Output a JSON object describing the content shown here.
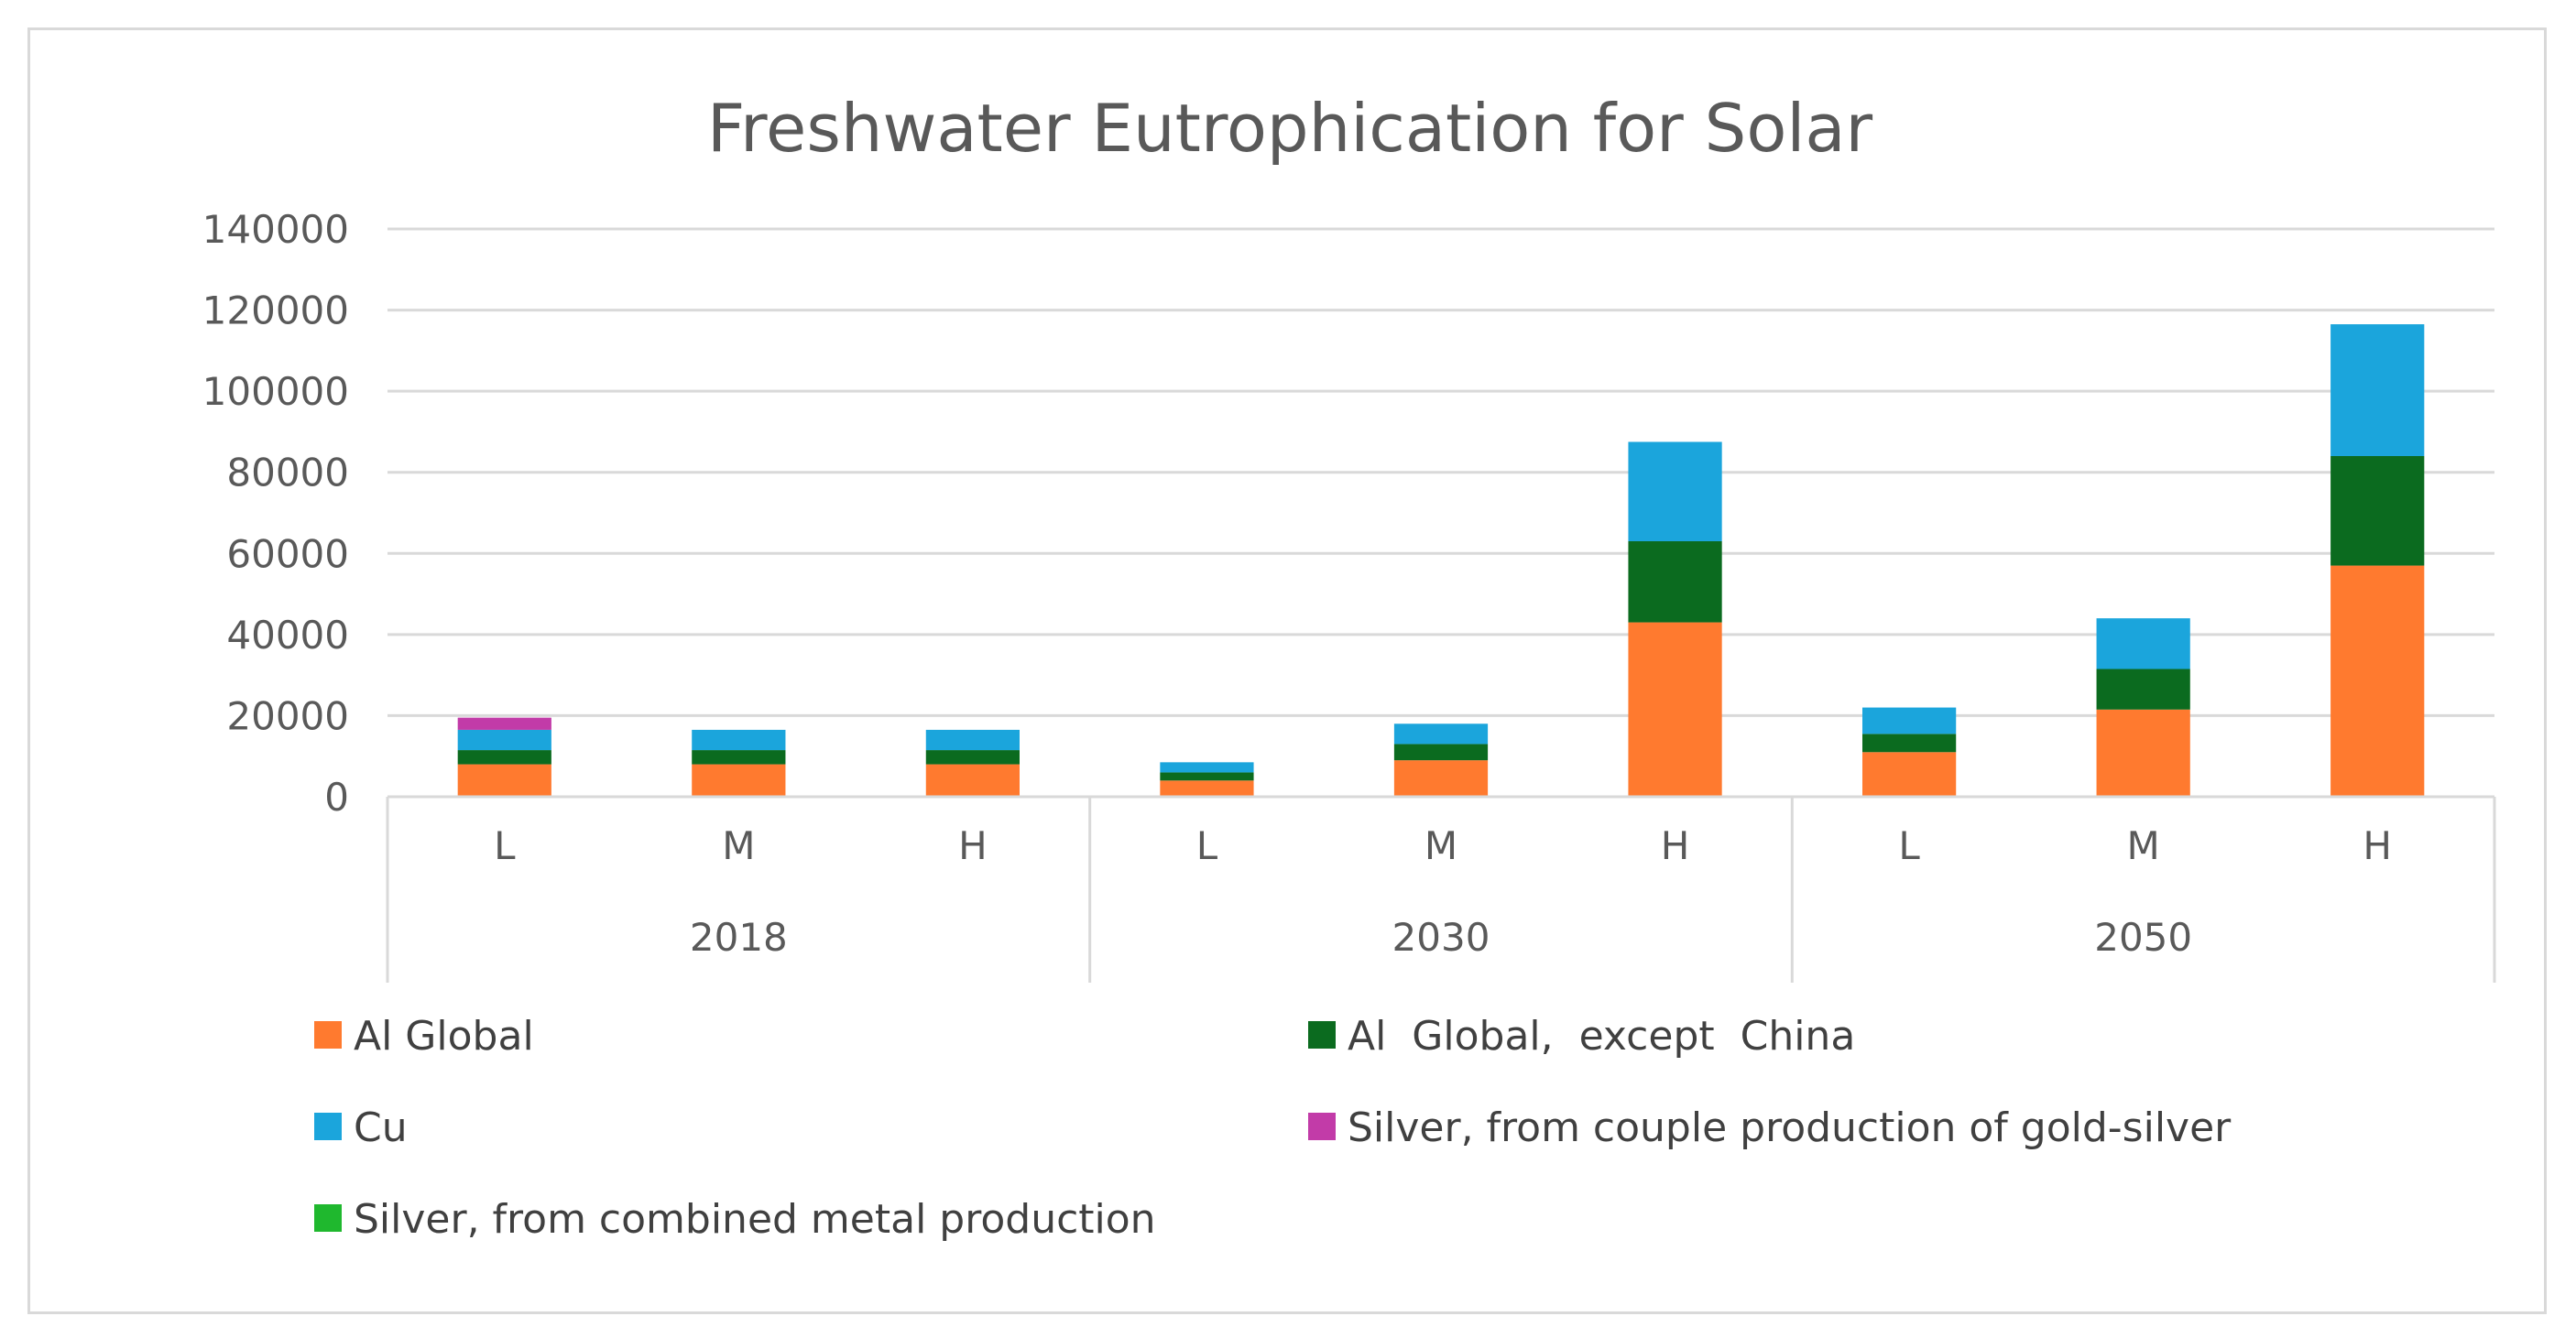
{
  "chart_data": {
    "type": "bar",
    "stacked": true,
    "title": "Freshwater Eutrophication for Solar",
    "xlabel": "",
    "ylabel": "",
    "ylim": [
      0,
      140000
    ],
    "yticks": [
      "0",
      "20000",
      "40000",
      "60000",
      "80000",
      "100000",
      "120000",
      "140000"
    ],
    "grid": true,
    "legend_position": "bottom",
    "groups": [
      {
        "label": "2018",
        "categories": [
          "L",
          "M",
          "H"
        ]
      },
      {
        "label": "2030",
        "categories": [
          "L",
          "M",
          "H"
        ]
      },
      {
        "label": "2050",
        "categories": [
          "L",
          "M",
          "H"
        ]
      }
    ],
    "series": [
      {
        "name": "Al Global",
        "color": "#ff7a2f",
        "values": [
          8000,
          8000,
          8000,
          4000,
          9000,
          43000,
          11000,
          21500,
          57000
        ]
      },
      {
        "name": "Al  Global,  except  China",
        "color": "#0b6b1f",
        "values": [
          3500,
          3500,
          3500,
          2000,
          4000,
          20000,
          4500,
          10000,
          27000
        ]
      },
      {
        "name": "Cu",
        "color": "#1ba5dc",
        "values": [
          5000,
          5000,
          5000,
          2500,
          5000,
          24500,
          6500,
          12500,
          32500
        ]
      },
      {
        "name": "Silver, from couple production of gold-silver",
        "color": "#c23ba8",
        "values": [
          3000,
          0,
          0,
          0,
          0,
          0,
          0,
          0,
          0
        ]
      },
      {
        "name": "Silver, from combined metal production",
        "color": "#1fb82e",
        "values": [
          0,
          0,
          0,
          0,
          0,
          0,
          0,
          0,
          0
        ]
      }
    ]
  }
}
